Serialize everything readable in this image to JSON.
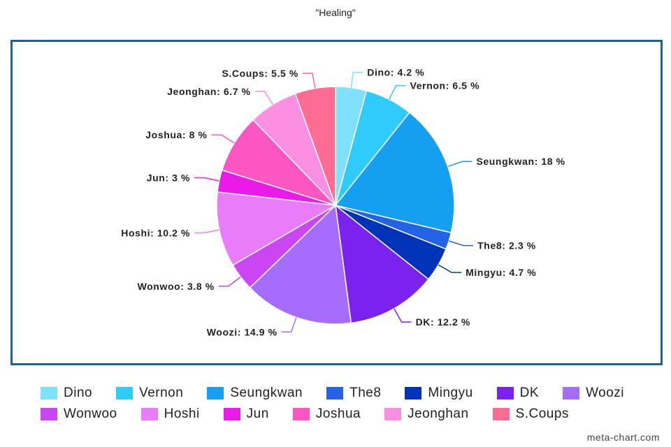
{
  "chart_data": {
    "type": "pie",
    "title": "\"Healing\"",
    "slices": [
      {
        "label": "Dino",
        "value": 4.2,
        "display": "Dino: 4.2 %",
        "color": "#7fe1fb"
      },
      {
        "label": "Vernon",
        "value": 6.5,
        "display": "Vernon: 6.5 %",
        "color": "#2ecbfb"
      },
      {
        "label": "Seungkwan",
        "value": 18,
        "display": "Seungkwan: 18 %",
        "color": "#149ff0"
      },
      {
        "label": "The8",
        "value": 2.3,
        "display": "The8: 2.3 %",
        "color": "#2563e6"
      },
      {
        "label": "Mingyu",
        "value": 4.7,
        "display": "Mingyu: 4.7 %",
        "color": "#0033b8"
      },
      {
        "label": "DK",
        "value": 12.2,
        "display": "DK: 12.2 %",
        "color": "#7a22ee"
      },
      {
        "label": "Woozi",
        "value": 14.9,
        "display": "Woozi: 14.9 %",
        "color": "#a66cfb"
      },
      {
        "label": "Wonwoo",
        "value": 3.8,
        "display": "Wonwoo: 3.8 %",
        "color": "#c946f2"
      },
      {
        "label": "Hoshi",
        "value": 10.2,
        "display": "Hoshi: 10.2 %",
        "color": "#e87cf9"
      },
      {
        "label": "Jun",
        "value": 3,
        "display": "Jun: 3 %",
        "color": "#ea1ae8"
      },
      {
        "label": "Joshua",
        "value": 8,
        "display": "Joshua: 8 %",
        "color": "#fb56c2"
      },
      {
        "label": "Jeonghan",
        "value": 6.7,
        "display": "Jeonghan: 6.7 %",
        "color": "#fb8fe2"
      },
      {
        "label": "S.Coups",
        "value": 5.5,
        "display": "S.Coups: 5.5 %",
        "color": "#fc6c93"
      }
    ],
    "legend_placement": "bottom"
  },
  "legend": {
    "rows": [
      [
        0,
        1,
        2,
        3,
        4,
        5,
        6
      ],
      [
        7,
        8,
        9,
        10,
        11,
        12
      ]
    ]
  },
  "watermark": "meta-chart.com"
}
